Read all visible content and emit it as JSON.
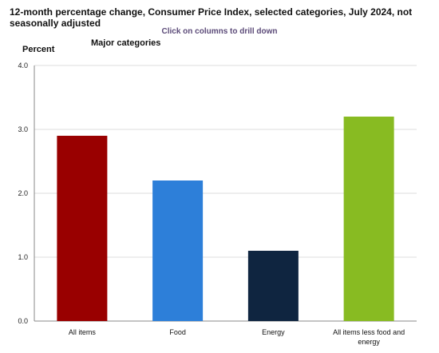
{
  "title": "12-month percentage change, Consumer Price Index, selected categories, July 2024, not seasonally adjusted",
  "drill_hint": "Click on columns to drill down",
  "y_axis_title": "Percent",
  "group_label": "Major categories",
  "chart_data": {
    "type": "bar",
    "categories": [
      "All items",
      "Food",
      "Energy",
      "All items less food and energy"
    ],
    "values": [
      2.9,
      2.2,
      1.1,
      3.2
    ],
    "colors": [
      "#990000",
      "#2d7fd9",
      "#0f2540",
      "#88bb22"
    ],
    "ylim": [
      0,
      4
    ],
    "yticks": [
      "0.0",
      "1.0",
      "2.0",
      "3.0",
      "4.0"
    ],
    "ylabel": "Percent",
    "grid": true,
    "title": "12-month percentage change, Consumer Price Index, selected categories, July 2024, not seasonally adjusted"
  }
}
